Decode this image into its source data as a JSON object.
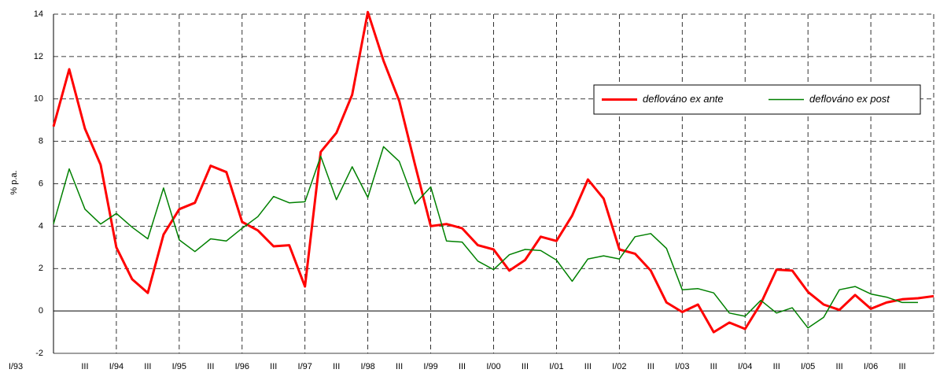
{
  "chart_data": {
    "type": "line",
    "y_label": "% p.a.",
    "categories": [
      "I/93",
      null,
      "III",
      null,
      "I/94",
      null,
      "III",
      null,
      "I/95",
      null,
      "III",
      null,
      "I/96",
      null,
      "III",
      null,
      "I/97",
      null,
      "III",
      null,
      "I/98",
      null,
      "III",
      null,
      "I/99",
      null,
      "III",
      null,
      "I/00",
      null,
      "III",
      null,
      "I/01",
      null,
      "III",
      null,
      "I/02",
      null,
      "III",
      null,
      "I/03",
      null,
      "III",
      null,
      "I/04",
      null,
      "III",
      null,
      "I/05",
      null,
      "III",
      null,
      "I/06",
      null,
      "III",
      null,
      null
    ],
    "series": [
      {
        "name": "deflováno ex ante",
        "color": "#ff0000",
        "values": [
          8.7,
          11.4,
          8.6,
          6.9,
          3.0,
          1.5,
          0.85,
          3.6,
          4.8,
          5.1,
          6.85,
          6.55,
          4.2,
          3.8,
          3.05,
          3.1,
          1.15,
          7.5,
          8.4,
          10.2,
          14.1,
          11.8,
          9.9,
          6.9,
          4.0,
          4.1,
          3.9,
          3.1,
          2.9,
          1.9,
          2.4,
          3.5,
          3.3,
          4.5,
          6.2,
          5.3,
          2.9,
          2.7,
          1.9,
          0.4,
          -0.05,
          0.3,
          -1.0,
          -0.55,
          -0.85,
          0.35,
          1.95,
          1.9,
          0.9,
          0.3,
          0.05,
          0.75,
          0.1,
          0.4,
          0.55,
          0.6,
          0.7
        ]
      },
      {
        "name": "deflováno ex post",
        "color": "#008000",
        "values": [
          4.1,
          6.7,
          4.8,
          4.1,
          4.6,
          3.95,
          3.4,
          5.8,
          3.35,
          2.8,
          3.4,
          3.3,
          3.9,
          4.45,
          5.4,
          5.1,
          5.15,
          7.3,
          5.25,
          6.8,
          5.35,
          7.75,
          7.05,
          5.05,
          5.85,
          3.3,
          3.25,
          2.35,
          1.95,
          2.65,
          2.9,
          2.85,
          2.4,
          1.4,
          2.45,
          2.6,
          2.45,
          3.5,
          3.65,
          2.95,
          1.0,
          1.05,
          0.85,
          -0.1,
          -0.25,
          0.5,
          -0.1,
          0.15,
          -0.8,
          -0.3,
          1.0,
          1.15,
          0.8,
          0.65,
          0.4,
          0.4,
          null
        ]
      }
    ],
    "ylim": [
      -2,
      14
    ],
    "yticks": [
      -2,
      0,
      2,
      4,
      6,
      8,
      10,
      12,
      14
    ],
    "grid": true,
    "legend": "upper right"
  }
}
